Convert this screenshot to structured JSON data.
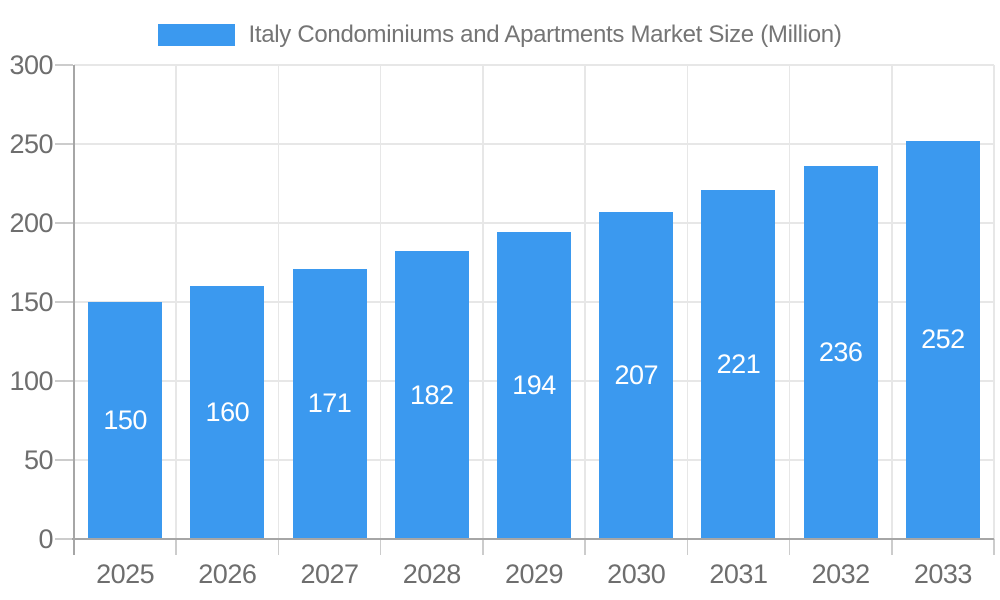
{
  "legend": {
    "label": "Italy Condominiums and Apartments Market Size (Million)"
  },
  "chart_data": {
    "type": "bar",
    "title": "Italy Condominiums and Apartments Market Size (Million)",
    "series_name": "Italy Condominiums and Apartments Market Size (Million)",
    "categories": [
      "2025",
      "2026",
      "2027",
      "2028",
      "2029",
      "2030",
      "2031",
      "2032",
      "2033"
    ],
    "values": [
      150,
      160,
      171,
      182,
      194,
      207,
      221,
      236,
      252
    ],
    "xlabel": "",
    "ylabel": "",
    "ylim": [
      0,
      300
    ],
    "yticks": [
      0,
      50,
      100,
      150,
      200,
      250,
      300
    ],
    "grid": true,
    "legend_position": "top",
    "data_labels_position": "inside-center"
  },
  "colors": {
    "bar": "#3B99EF",
    "grid": "#e7e7e7",
    "axis": "#a6a6a6",
    "tick": "#cccccc",
    "tick_label": "#6e6e6e",
    "title": "#757575",
    "data_label": "#ffffff",
    "background": "#ffffff"
  }
}
